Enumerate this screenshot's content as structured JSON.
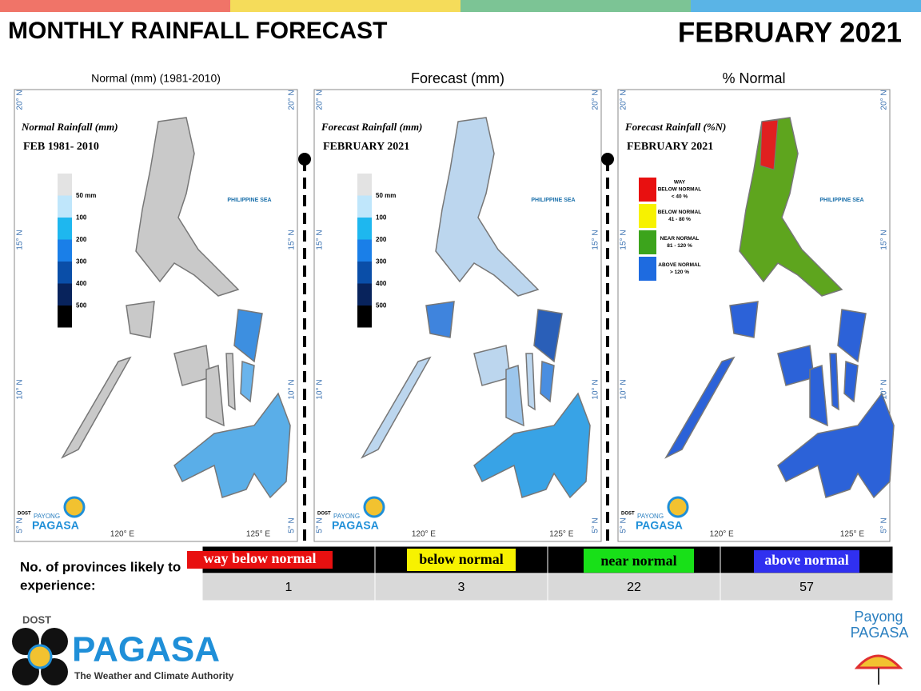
{
  "header": {
    "title": "MONTHLY RAINFALL FORECAST",
    "date": "FEBRUARY 2021"
  },
  "map_labels": {
    "lat": [
      "20° N",
      "15° N",
      "10° N",
      "5° N"
    ],
    "lon": [
      "120° E",
      "125° E"
    ],
    "sea": "PHILIPPINE SEA"
  },
  "panels": [
    {
      "heading": "Normal (mm) (1981-2010)",
      "map_title": "Normal Rainfall (mm)",
      "map_subtitle": "FEB 1981- 2010",
      "legend": [
        "50 mm",
        "100",
        "200",
        "300",
        "400",
        "500"
      ]
    },
    {
      "heading": "Forecast (mm)",
      "map_title": "Forecast Rainfall (mm)",
      "map_subtitle": "FEBRUARY 2021",
      "legend": [
        "50 mm",
        "100",
        "200",
        "300",
        "400",
        "500"
      ]
    },
    {
      "heading": "% Normal",
      "map_title": "Forecast Rainfall (%N)",
      "map_subtitle": "FEBRUARY 2021",
      "legend": [
        [
          "WAY",
          "BELOW NORMAL",
          "< 40 %"
        ],
        [
          "BELOW NORMAL",
          "41 - 80 %"
        ],
        [
          "NEAR NORMAL",
          "81 - 120 %"
        ],
        [
          "ABOVE NORMAL",
          "> 120 %"
        ]
      ]
    }
  ],
  "table": {
    "label": [
      "No. of provinces likely to",
      "experience:"
    ],
    "columns": [
      "way below normal",
      "below normal",
      "near normal",
      "above normal"
    ],
    "counts": [
      1,
      3,
      22,
      57
    ]
  },
  "logos": {
    "dost": "DOST",
    "payong": "PAYONG",
    "pagasa": "PAGASA",
    "tagline": "The Weather and Climate Authority",
    "payong_footer": "Payong"
  }
}
